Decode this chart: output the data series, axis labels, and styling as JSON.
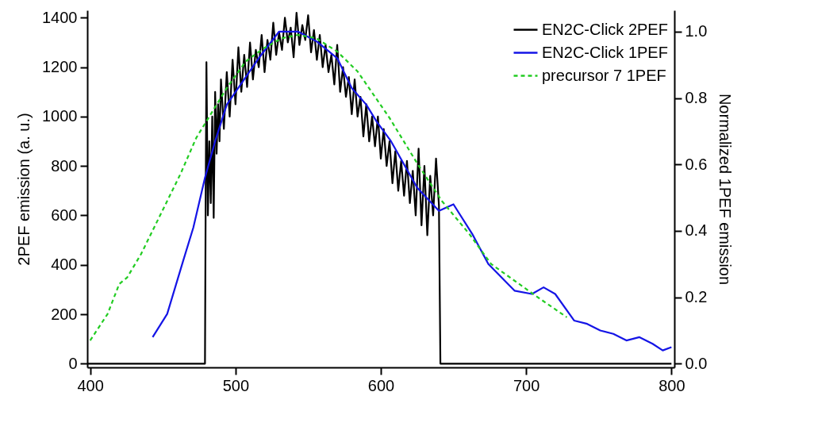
{
  "chart_data": {
    "type": "line",
    "xlabel": null,
    "ylabel": "2PEF emission (a. u.)",
    "y2label": "Normalized 1PEF emission",
    "xlim": [
      398,
      802
    ],
    "xticks": [
      400,
      500,
      600,
      700,
      800
    ],
    "ylim": [
      -15,
      1430
    ],
    "yticks": [
      0,
      200,
      400,
      600,
      800,
      1000,
      1200,
      1400
    ],
    "y2lim": [
      -0.011,
      1.064
    ],
    "y2ticks": [
      {
        "value": 0,
        "label": "0.0"
      },
      {
        "value": 0.2,
        "label": "0.2"
      },
      {
        "value": 0.4,
        "label": "0.4"
      },
      {
        "value": 0.6,
        "label": "0.6"
      },
      {
        "value": 0.8,
        "label": "0.8"
      },
      {
        "value": 1,
        "label": "1.0"
      }
    ],
    "grid": false,
    "legend": "top right",
    "marker": "none",
    "series": [
      {
        "name": "EN2C-Click 2PEF",
        "color": "#000000",
        "axis": "y",
        "line_style": "solid",
        "x": [
          398,
          479,
          479.5,
          480,
          481,
          482,
          483,
          484,
          485,
          486,
          487,
          488,
          489,
          490,
          492,
          494,
          496,
          498,
          500,
          502,
          504,
          506,
          508,
          510,
          512,
          514,
          516,
          518,
          520,
          522,
          524,
          526,
          528,
          530,
          532,
          534,
          536,
          538,
          540,
          542,
          544,
          546,
          548,
          550,
          552,
          554,
          556,
          558,
          560,
          562,
          564,
          566,
          568,
          570,
          572,
          574,
          576,
          578,
          580,
          582,
          584,
          586,
          588,
          590,
          592,
          594,
          596,
          598,
          600,
          602,
          604,
          606,
          608,
          610,
          612,
          614,
          616,
          618,
          620,
          622,
          624,
          626,
          628,
          630,
          632,
          634,
          636,
          638,
          640,
          641,
          800
        ],
        "values": [
          0,
          0,
          700,
          1220,
          600,
          900,
          650,
          1000,
          590,
          1100,
          850,
          1050,
          900,
          1150,
          950,
          1180,
          1000,
          1230,
          1050,
          1280,
          1100,
          1250,
          1120,
          1300,
          1150,
          1270,
          1200,
          1330,
          1180,
          1310,
          1230,
          1380,
          1250,
          1340,
          1270,
          1400,
          1300,
          1360,
          1240,
          1420,
          1290,
          1370,
          1310,
          1410,
          1260,
          1350,
          1230,
          1330,
          1200,
          1290,
          1180,
          1250,
          1130,
          1290,
          1100,
          1200,
          1080,
          1160,
          1010,
          1150,
          1000,
          1080,
          920,
          1050,
          900,
          1000,
          880,
          1000,
          830,
          950,
          800,
          900,
          730,
          860,
          700,
          820,
          680,
          820,
          650,
          780,
          600,
          870,
          560,
          800,
          520,
          760,
          600,
          830,
          640,
          0,
          0
        ]
      },
      {
        "name": "EN2C-Click 1PEF",
        "color": "#1414e6",
        "axis": "y2",
        "line_style": "solid",
        "x": [
          443,
          453,
          464,
          471,
          479,
          486,
          494,
          505,
          516,
          530,
          543,
          556,
          570,
          580,
          590,
          597,
          607,
          625,
          640,
          650,
          663,
          674,
          692,
          704,
          712,
          720,
          733,
          742,
          751,
          760,
          769,
          778,
          787,
          794,
          800
        ],
        "values": [
          0.08,
          0.15,
          0.31,
          0.41,
          0.56,
          0.67,
          0.78,
          0.85,
          0.92,
          1.0,
          1.0,
          0.97,
          0.92,
          0.83,
          0.78,
          0.73,
          0.67,
          0.53,
          0.46,
          0.48,
          0.39,
          0.3,
          0.22,
          0.21,
          0.23,
          0.21,
          0.13,
          0.12,
          0.1,
          0.09,
          0.07,
          0.08,
          0.06,
          0.04,
          0.05
        ]
      },
      {
        "name": "precursor 7 1PEF",
        "color": "#22cc22",
        "axis": "y2",
        "line_style": "dashed",
        "x": [
          400,
          412,
          420,
          425.5,
          435,
          444,
          453,
          462,
          473,
          483.5,
          494,
          507,
          519.5,
          532,
          543,
          555.5,
          570,
          584,
          606,
          625.5,
          642,
          661,
          676,
          692,
          708,
          728
        ],
        "values": [
          0.07,
          0.15,
          0.24,
          0.26,
          0.33,
          0.41,
          0.49,
          0.57,
          0.68,
          0.755,
          0.83,
          0.91,
          0.95,
          0.98,
          0.99,
          0.98,
          0.94,
          0.88,
          0.74,
          0.6,
          0.49,
          0.39,
          0.3,
          0.25,
          0.2,
          0.14
        ]
      }
    ]
  }
}
